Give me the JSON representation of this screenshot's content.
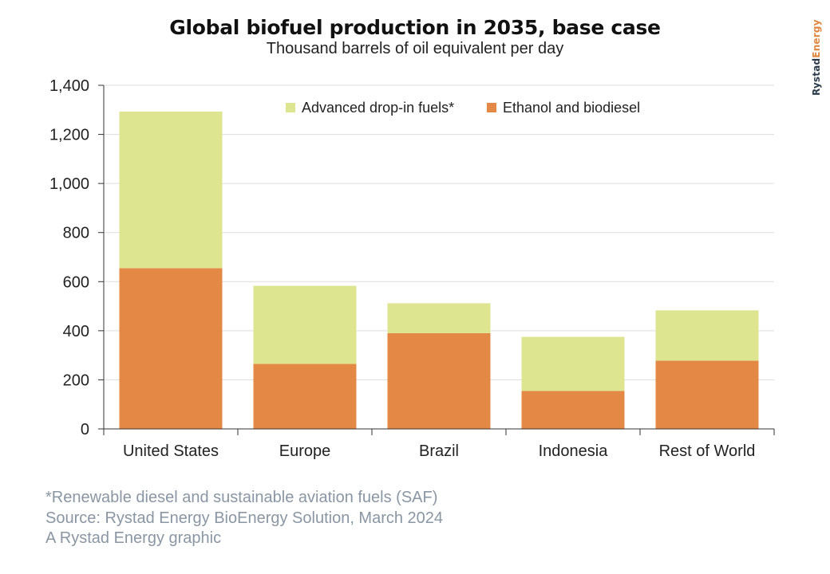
{
  "header": {
    "title": "Global biofuel production in 2035, base case",
    "subtitle": "Thousand barrels of oil equivalent per day"
  },
  "brand": {
    "part1": "Rystad",
    "part2": "Energy"
  },
  "footer": {
    "lines": [
      "*Renewable diesel and sustainable aviation fuels (SAF)",
      "Source: Rystad Energy BioEnergy Solution, March 2024",
      "A Rystad Energy graphic"
    ]
  },
  "colors": {
    "advanced": "#dde591",
    "ethanol": "#e48945",
    "grid": "#dddddd",
    "axis": "#333333"
  },
  "chart_data": {
    "type": "bar",
    "stacked": true,
    "title": "Global biofuel production in 2035, base case",
    "subtitle": "Thousand barrels of oil equivalent per day",
    "categories": [
      "United States",
      "Europe",
      "Brazil",
      "Indonesia",
      "Rest of World"
    ],
    "series": [
      {
        "name": "Ethanol and biodiesel",
        "values": [
          655,
          265,
          390,
          155,
          278
        ]
      },
      {
        "name": "Advanced drop-in fuels*",
        "values": [
          638,
          318,
          122,
          220,
          205
        ]
      }
    ],
    "legend_order": [
      "Advanced drop-in fuels*",
      "Ethanol and biodiesel"
    ],
    "ylim": [
      0,
      1400
    ],
    "yticks": [
      0,
      200,
      400,
      600,
      800,
      1000,
      1200,
      1400
    ],
    "ytick_labels": [
      "0",
      "200",
      "400",
      "600",
      "800",
      "1,000",
      "1,200",
      "1,400"
    ],
    "grid": true,
    "legend_position": "top-center"
  }
}
